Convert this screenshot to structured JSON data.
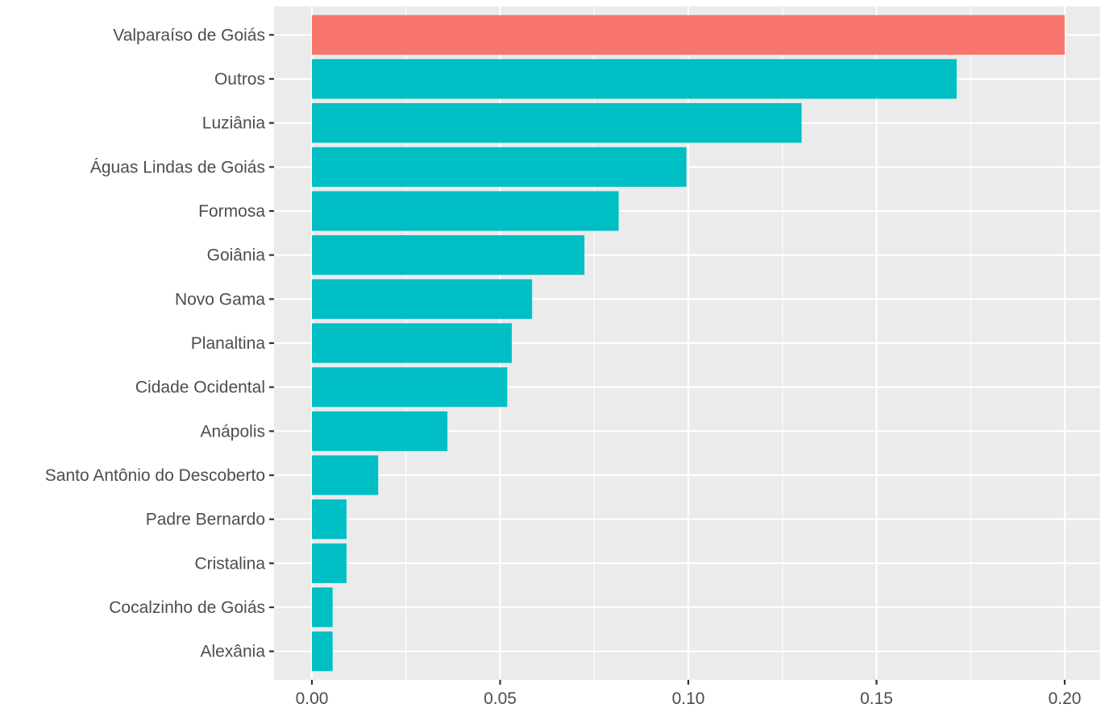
{
  "chart_data": {
    "type": "bar",
    "orientation": "horizontal",
    "title": "",
    "xlabel": "",
    "ylabel": "",
    "xlim": [
      0,
      0.2
    ],
    "x_ticks": [
      "0.00",
      "0.05",
      "0.10",
      "0.15",
      "0.20"
    ],
    "grid": true,
    "categories": [
      "Valparaíso de Goiás",
      "Outros",
      "Luziânia",
      "Águas Lindas de Goiás",
      "Formosa",
      "Goiânia",
      "Novo Gama",
      "Planaltina",
      "Cidade Ocidental",
      "Anápolis",
      "Santo Antônio do Descoberto",
      "Padre Bernardo",
      "Cristalina",
      "Cocalzinho de Goiás",
      "Alexânia"
    ],
    "values": [
      0.2,
      0.1713,
      0.1301,
      0.0995,
      0.0815,
      0.0724,
      0.0585,
      0.0531,
      0.0519,
      0.036,
      0.0176,
      0.0092,
      0.0092,
      0.0055,
      0.0055
    ],
    "colors": [
      "#f8766d",
      "#00bfc4",
      "#00bfc4",
      "#00bfc4",
      "#00bfc4",
      "#00bfc4",
      "#00bfc4",
      "#00bfc4",
      "#00bfc4",
      "#00bfc4",
      "#00bfc4",
      "#00bfc4",
      "#00bfc4",
      "#00bfc4",
      "#00bfc4"
    ]
  }
}
